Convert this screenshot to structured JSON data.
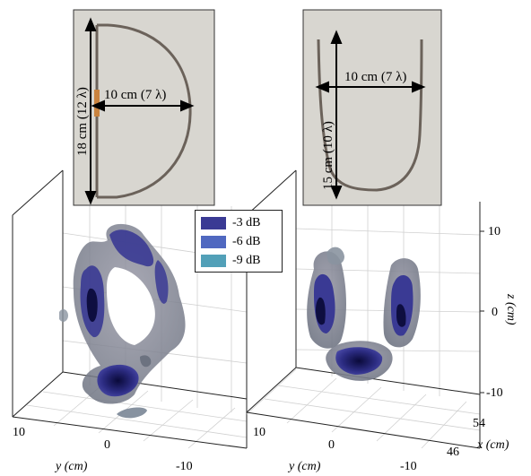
{
  "left_photo": {
    "vertical_label": "18 cm (12 λ)",
    "horizontal_label": "10 cm (7 λ)"
  },
  "right_photo": {
    "vertical_label": "15 cm (10 λ)",
    "horizontal_label": "10 cm (7 λ)"
  },
  "legend": {
    "items": [
      {
        "label": "-3 dB",
        "color": "#3a3a94"
      },
      {
        "label": "-6 dB",
        "color": "#5068c0"
      },
      {
        "label": "-9 dB",
        "color": "#52a0b8"
      }
    ]
  },
  "axes": {
    "y_ticks": [
      "10",
      "0",
      "-10"
    ],
    "y_label": "y (cm)",
    "z_ticks": [
      "10",
      "0",
      "-10"
    ],
    "z_label": "z (cm)",
    "x_ticks": [
      "54",
      "46"
    ],
    "x_label": "x (cm)"
  }
}
